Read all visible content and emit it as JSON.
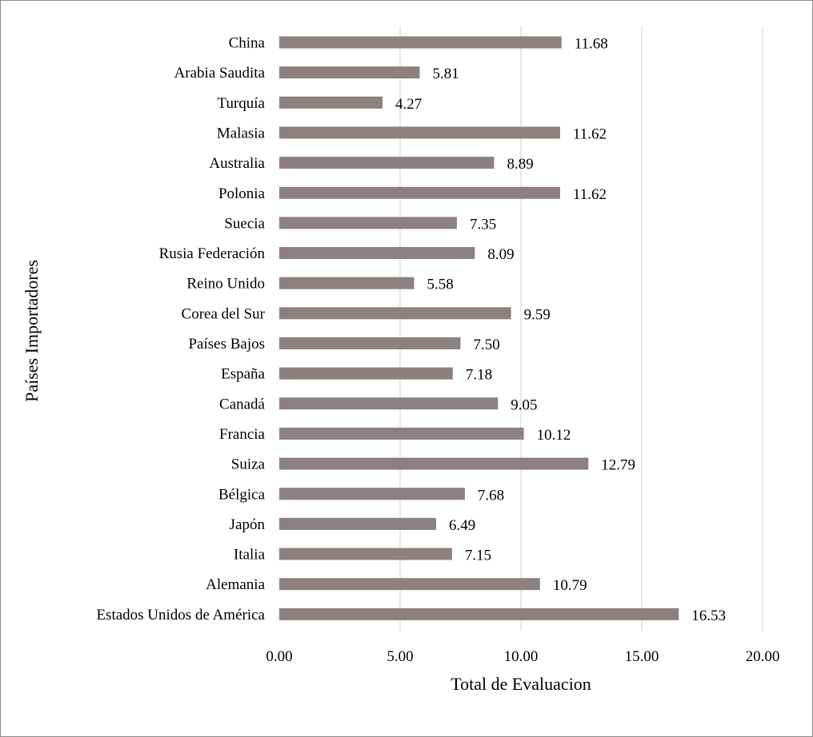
{
  "chart_data": {
    "type": "bar",
    "orientation": "horizontal",
    "title": "",
    "xlabel": "Total de Evaluacion",
    "ylabel": "Países Importadores",
    "xlim": [
      0,
      20
    ],
    "xticks": [
      "0.00",
      "5.00",
      "10.00",
      "15.00",
      "20.00"
    ],
    "xtick_values": [
      0,
      5,
      10,
      15,
      20
    ],
    "grid": "vertical",
    "legend": "none",
    "bar_color": "#8c8080",
    "categories": [
      "China",
      "Arabia Saudita",
      "Turquía",
      "Malasia",
      "Australia",
      "Polonia",
      "Suecia",
      "Rusia Federación",
      "Reino Unido",
      "Corea del Sur",
      "Países Bajos",
      "España",
      "Canadá",
      "Francia",
      "Suiza",
      "Bélgica",
      "Japón",
      "Italia",
      "Alemania",
      "Estados Unidos de América"
    ],
    "values": [
      11.68,
      5.81,
      4.27,
      11.62,
      8.89,
      11.62,
      7.35,
      8.09,
      5.58,
      9.59,
      7.5,
      7.18,
      9.05,
      10.12,
      12.79,
      7.68,
      6.49,
      7.15,
      10.79,
      16.53
    ],
    "value_labels": [
      "11.68",
      "5.81",
      "4.27",
      "11.62",
      "8.89",
      "11.62",
      "7.35",
      "8.09",
      "5.58",
      "9.59",
      "7.50",
      "7.18",
      "9.05",
      "10.12",
      "12.79",
      "7.68",
      "6.49",
      "7.15",
      "10.79",
      "16.53"
    ]
  }
}
